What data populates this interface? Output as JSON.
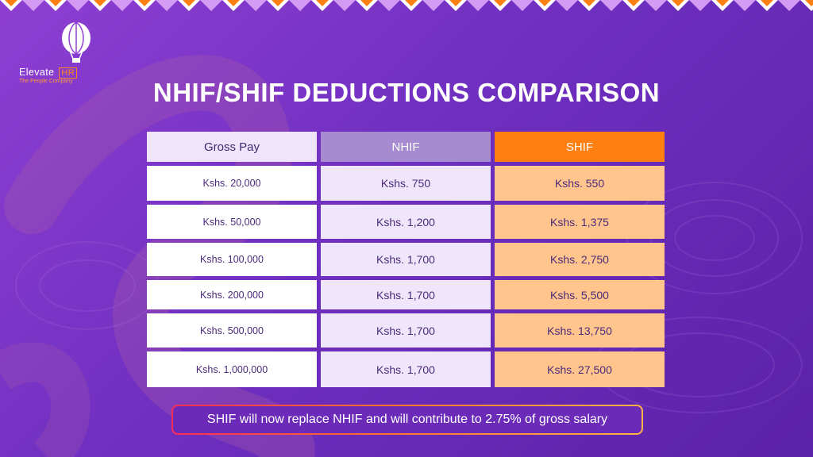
{
  "logo": {
    "brand": "Elevate",
    "brand_hr": "HR",
    "tagline": "The People Company"
  },
  "title": "NHIF/SHIF DEDUCTIONS COMPARISON",
  "table": {
    "headers": [
      "Gross Pay",
      "NHIF",
      "SHIF"
    ],
    "rows": [
      [
        "Kshs. 20,000",
        "Kshs. 750",
        "Kshs. 550"
      ],
      [
        "Kshs. 50,000",
        "Kshs. 1,200",
        "Kshs. 1,375"
      ],
      [
        "Kshs. 100,000",
        "Kshs. 1,700",
        "Kshs. 2,750"
      ],
      [
        "Kshs. 200,000",
        "Kshs. 1,700",
        "Kshs. 5,500"
      ],
      [
        "Kshs. 500,000",
        "Kshs. 1,700",
        "Kshs. 13,750"
      ],
      [
        "Kshs. 1,000,000",
        "Kshs. 1,700",
        "Kshs. 27,500"
      ]
    ]
  },
  "note": "SHIF will now replace NHIF and will contribute to 2.75% of gross salary",
  "colors": {
    "background": "#7a33c6",
    "header_gross": "#efe4fb",
    "header_nhif": "#a68bd1",
    "header_shif": "#ff7f11",
    "nhif_cells": "#f0e6fc",
    "shif_cells": "#ffc58c",
    "accent_orange": "#ff7f11"
  }
}
